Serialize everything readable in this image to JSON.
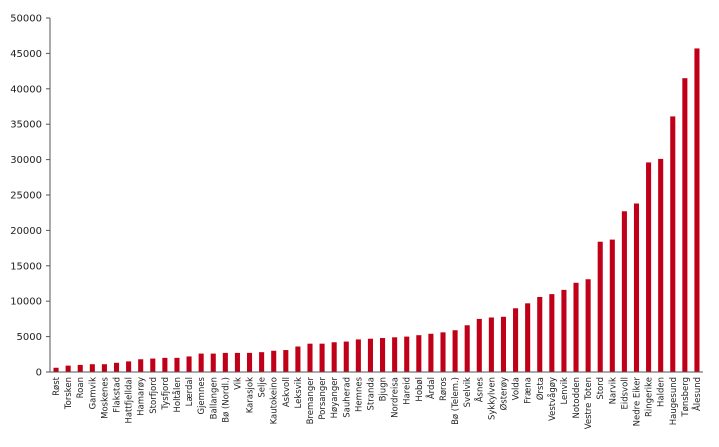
{
  "chart_data": {
    "type": "bar",
    "title": "",
    "xlabel": "",
    "ylabel": "",
    "ylim": [
      0,
      50000
    ],
    "yticks": [
      0,
      5000,
      10000,
      15000,
      20000,
      25000,
      30000,
      35000,
      40000,
      45000,
      50000
    ],
    "ytick_labels": [
      "0",
      "5000",
      "10000",
      "15000",
      "20000",
      "25000",
      "30000",
      "35000",
      "40000",
      "45000",
      "50000"
    ],
    "grid": false,
    "legend": "none",
    "bar_color": "#c00018",
    "categories": [
      "Røst",
      "Torsken",
      "Roan",
      "Gamvik",
      "Moskenes",
      "Flakstad",
      "Hattfjelldal",
      "Hamarøy",
      "Storfjord",
      "Tysfjord",
      "Holtålen",
      "Lærdal",
      "Gjemnes",
      "Ballangen",
      "Bø (Nordl.)",
      "Vik",
      "Karasjok",
      "Selje",
      "Kautokeino",
      "Askvoll",
      "Leksvik",
      "Bremanger",
      "Porsanger",
      "Høyanger",
      "Sauherad",
      "Hemnes",
      "Stranda",
      "Bjugn",
      "Nordreisa",
      "Hareid",
      "Hobøl",
      "Årdal",
      "Røros",
      "Bø (Telem.)",
      "Svelvik",
      "Åsnes",
      "Sykkylven",
      "Østerøy",
      "Volda",
      "Fræna",
      "Ørsta",
      "Vestvågøy",
      "Lenvik",
      "Notodden",
      "Vestre Toten",
      "Stord",
      "Narvik",
      "Eidsvoll",
      "Nedre Eiker",
      "Ringerike",
      "Halden",
      "Haugesund",
      "Tønsberg",
      "Ålesund"
    ],
    "values": [
      600,
      900,
      1000,
      1100,
      1100,
      1300,
      1500,
      1800,
      1900,
      2000,
      2000,
      2200,
      2600,
      2600,
      2700,
      2700,
      2700,
      2800,
      3000,
      3100,
      3600,
      4000,
      4000,
      4200,
      4300,
      4600,
      4700,
      4800,
      4900,
      5000,
      5200,
      5400,
      5600,
      5900,
      6600,
      7500,
      7700,
      7800,
      9000,
      9700,
      10600,
      11000,
      11600,
      12600,
      13100,
      18400,
      18700,
      22700,
      23800,
      29600,
      30100,
      36100,
      41500,
      45700
    ]
  }
}
